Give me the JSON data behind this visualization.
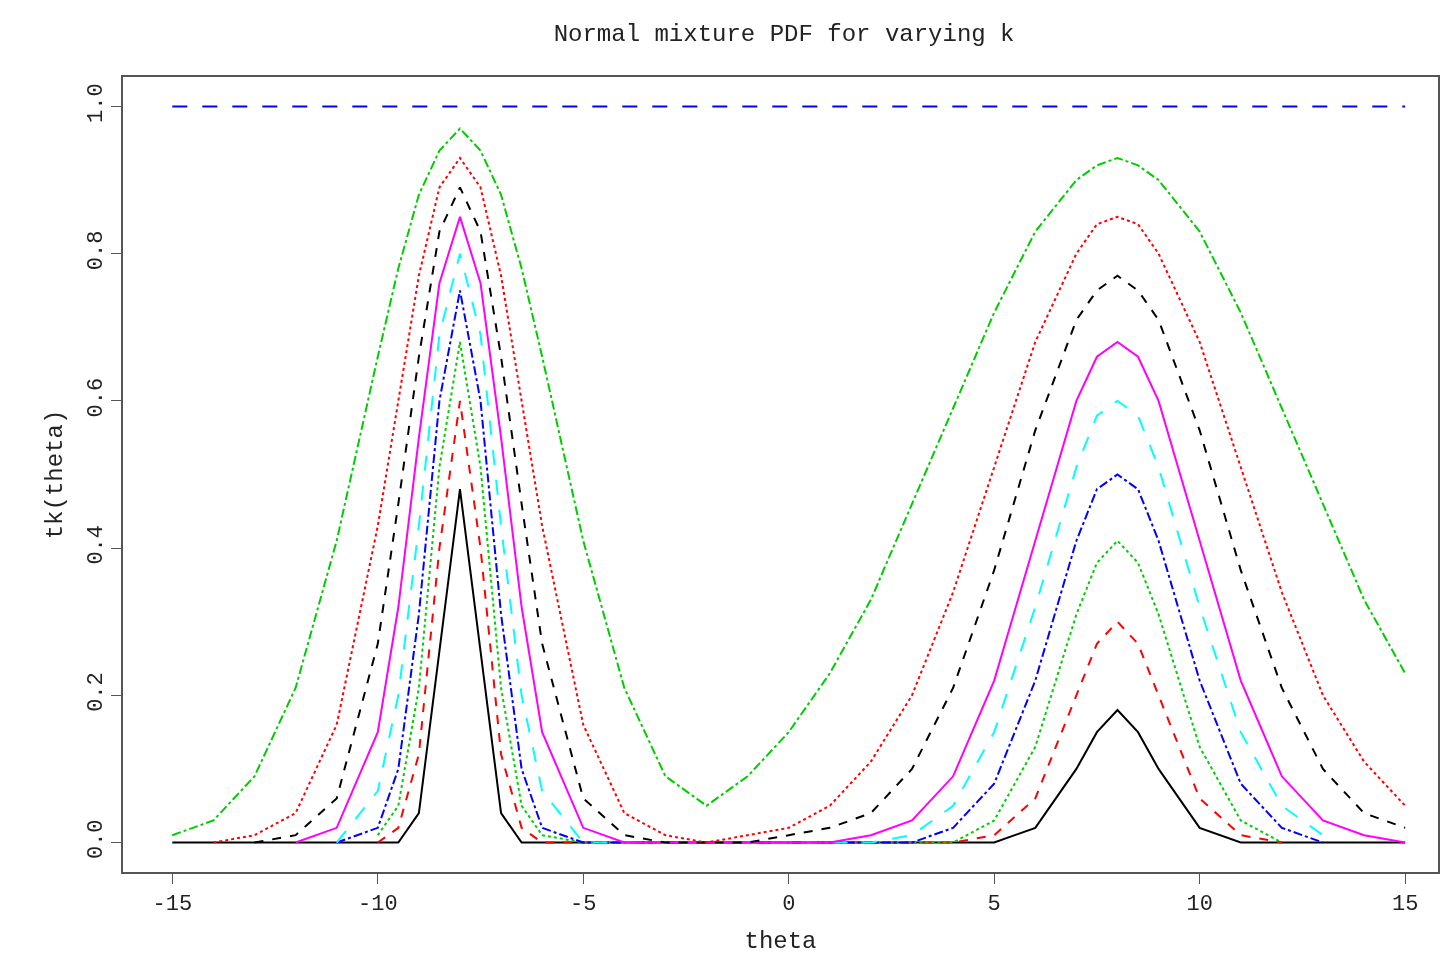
{
  "chart_data": {
    "type": "line",
    "title": "Normal mixture PDF for varying k",
    "xlabel": "theta",
    "ylabel": "tk(theta)",
    "x": [
      -15,
      -14,
      -13,
      -12,
      -11,
      -10,
      -9.5,
      -9,
      -8.5,
      -8,
      -7.5,
      -7,
      -6.5,
      -6,
      -5,
      -4,
      -3,
      -2,
      -1,
      0,
      1,
      2,
      3,
      4,
      5,
      6,
      7,
      7.5,
      8,
      8.5,
      9,
      10,
      11,
      12,
      13,
      14,
      15
    ],
    "series": [
      {
        "color": "#000000",
        "line_style": "solid",
        "values": [
          0,
          0,
          0,
          0,
          0,
          0,
          0,
          0.04,
          0.26,
          0.48,
          0.26,
          0.04,
          0,
          0,
          0,
          0,
          0,
          0,
          0,
          0,
          0,
          0,
          0,
          0,
          0,
          0.02,
          0.1,
          0.15,
          0.18,
          0.15,
          0.1,
          0.02,
          0,
          0,
          0,
          0,
          0
        ]
      },
      {
        "color": "#ff0000",
        "line_style": "dashed",
        "values": [
          null,
          null,
          null,
          null,
          null,
          0,
          0.02,
          0.12,
          0.4,
          0.6,
          0.4,
          0.12,
          0.02,
          0,
          0,
          0,
          0,
          0,
          0,
          0,
          0,
          0,
          0,
          0,
          0.01,
          0.06,
          0.2,
          0.27,
          0.3,
          0.27,
          0.2,
          0.06,
          0.01,
          0,
          null,
          null,
          null
        ]
      },
      {
        "color": "#00cd00",
        "line_style": "dotted",
        "values": [
          null,
          null,
          null,
          null,
          null,
          0.01,
          0.05,
          0.21,
          0.51,
          0.68,
          0.51,
          0.21,
          0.05,
          0.01,
          0,
          0,
          0,
          0,
          0,
          0,
          0,
          0,
          0,
          0,
          0.03,
          0.13,
          0.31,
          0.38,
          0.41,
          0.38,
          0.31,
          0.13,
          0.03,
          0,
          null,
          null,
          null
        ]
      },
      {
        "color": "#0000ff",
        "line_style": "dashdot",
        "values": [
          null,
          null,
          null,
          null,
          0,
          0.02,
          0.1,
          0.31,
          0.6,
          0.75,
          0.6,
          0.31,
          0.1,
          0.02,
          0,
          0,
          0,
          0,
          0,
          0,
          0,
          0,
          0,
          0.02,
          0.08,
          0.22,
          0.41,
          0.48,
          0.5,
          0.48,
          0.41,
          0.22,
          0.08,
          0.02,
          0,
          null,
          null
        ]
      },
      {
        "color": "#00ffff",
        "line_style": "longdash",
        "values": [
          null,
          null,
          null,
          null,
          0,
          0.07,
          0.2,
          0.43,
          0.69,
          0.8,
          0.69,
          0.43,
          0.2,
          0.07,
          0,
          0,
          0,
          0,
          0,
          0,
          0,
          0,
          0.01,
          0.05,
          0.15,
          0.32,
          0.51,
          0.58,
          0.6,
          0.58,
          0.51,
          0.32,
          0.15,
          0.05,
          0.01,
          null,
          null
        ]
      },
      {
        "color": "#ff00ff",
        "line_style": "solid",
        "values": [
          null,
          null,
          null,
          0,
          0.02,
          0.15,
          0.32,
          0.55,
          0.76,
          0.85,
          0.76,
          0.55,
          0.32,
          0.15,
          0.02,
          0,
          0,
          0,
          0,
          0,
          0,
          0.01,
          0.03,
          0.09,
          0.22,
          0.41,
          0.6,
          0.66,
          0.68,
          0.66,
          0.6,
          0.41,
          0.22,
          0.09,
          0.03,
          0.01,
          0
        ]
      },
      {
        "color": "#000000",
        "line_style": "dashed",
        "values": [
          null,
          null,
          0,
          0.01,
          0.06,
          0.27,
          0.46,
          0.66,
          0.83,
          0.89,
          0.83,
          0.66,
          0.46,
          0.27,
          0.06,
          0.01,
          0,
          0,
          0,
          0.01,
          0.02,
          0.04,
          0.1,
          0.21,
          0.37,
          0.56,
          0.71,
          0.75,
          0.77,
          0.75,
          0.71,
          0.56,
          0.37,
          0.21,
          0.1,
          0.04,
          0.02
        ]
      },
      {
        "color": "#ff0000",
        "line_style": "dotted",
        "values": [
          null,
          0,
          0.01,
          0.04,
          0.16,
          0.43,
          0.6,
          0.77,
          0.89,
          0.93,
          0.89,
          0.77,
          0.6,
          0.43,
          0.16,
          0.04,
          0.01,
          0,
          0.01,
          0.02,
          0.05,
          0.11,
          0.2,
          0.34,
          0.51,
          0.68,
          0.8,
          0.84,
          0.85,
          0.84,
          0.8,
          0.68,
          0.51,
          0.34,
          0.2,
          0.11,
          0.05
        ]
      },
      {
        "color": "#00cd00",
        "line_style": "dashdot",
        "values": [
          0.01,
          0.03,
          0.09,
          0.21,
          0.41,
          0.66,
          0.78,
          0.88,
          0.94,
          0.97,
          0.94,
          0.88,
          0.78,
          0.66,
          0.41,
          0.21,
          0.09,
          0.05,
          0.09,
          0.15,
          0.23,
          0.33,
          0.46,
          0.59,
          0.72,
          0.83,
          0.9,
          0.92,
          0.93,
          0.92,
          0.9,
          0.83,
          0.72,
          0.59,
          0.46,
          0.33,
          0.23
        ]
      },
      {
        "color": "#0000ff",
        "line_style": "longdash",
        "x": [
          -15,
          15
        ],
        "values": [
          1,
          1
        ]
      }
    ],
    "xlim": [
      -16.2,
      15.8
    ],
    "ylim": [
      -0.04,
      1.04
    ],
    "xticks": [
      -15,
      -10,
      -5,
      0,
      5,
      10,
      15
    ],
    "yticks": [
      {
        "value": 0,
        "label": "0.0"
      },
      {
        "value": 0.2,
        "label": "0.2"
      },
      {
        "value": 0.4,
        "label": "0.4"
      },
      {
        "value": 0.6,
        "label": "0.6"
      },
      {
        "value": 0.8,
        "label": "0.8"
      },
      {
        "value": 1,
        "label": "1.0"
      }
    ]
  }
}
